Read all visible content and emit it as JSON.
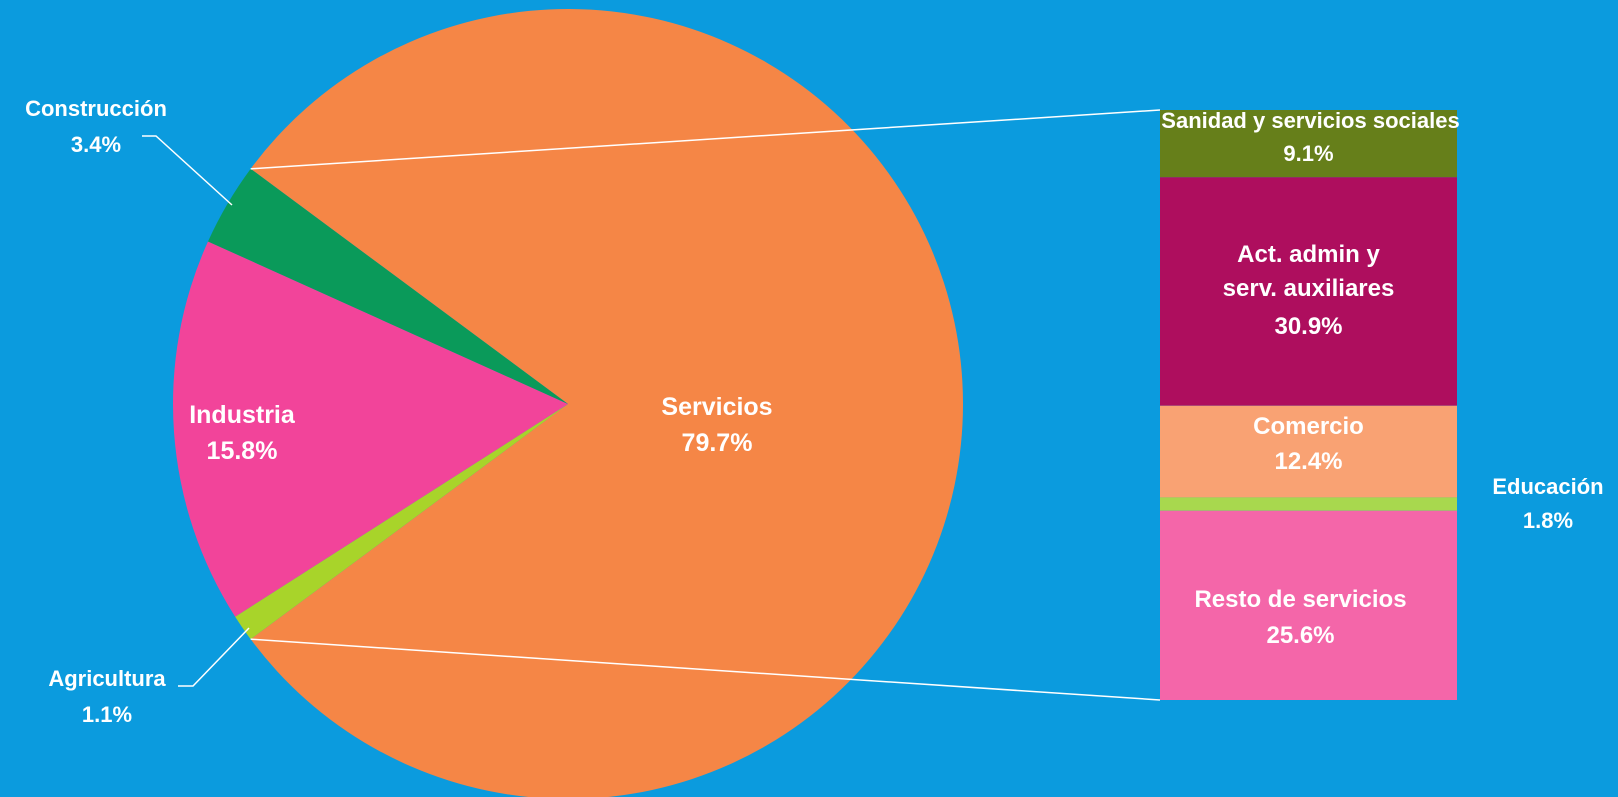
{
  "chart_data": {
    "type": "pie",
    "subtype": "bar-of-pie",
    "pie": {
      "slices": [
        {
          "name": "Servicios",
          "value": 79.7,
          "label": "79.7%",
          "color": "#F58646"
        },
        {
          "name": "Agricultura",
          "value": 1.1,
          "label": "1.1%",
          "color": "#A8D42A"
        },
        {
          "name": "Industria",
          "value": 15.8,
          "label": "15.8%",
          "color": "#F2449A"
        },
        {
          "name": "Construcción",
          "value": 3.4,
          "label": "3.4%",
          "color": "#0A9A5A"
        }
      ]
    },
    "bar": {
      "segments": [
        {
          "name": "Sanidad y servicios sociales",
          "value": 9.1,
          "label": "9.1%",
          "color": "#667F1A"
        },
        {
          "name": "Act. admin y serv. auxiliares",
          "lines": [
            "Act. admin y",
            "serv. auxiliares"
          ],
          "value": 30.9,
          "label": "30.9%",
          "color": "#AE0E5E"
        },
        {
          "name": "Comercio",
          "value": 12.4,
          "label": "12.4%",
          "color": "#F9A273"
        },
        {
          "name": "Educación",
          "value": 1.8,
          "label": "1.8%",
          "color": "#A8D84E"
        },
        {
          "name": "Resto de servicios",
          "value": 25.6,
          "label": "25.6%",
          "color": "#F466A9"
        }
      ]
    },
    "connector_color": "#ffffff",
    "background": "#0B9BDE"
  }
}
